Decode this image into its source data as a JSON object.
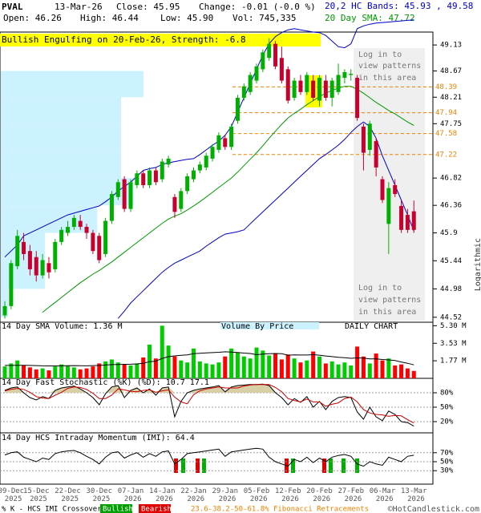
{
  "header": {
    "symbol": "PVAL",
    "date": "13-Mar-26",
    "close": "Close: 45.95",
    "change": "Change: -0.01 (-0.0 %)",
    "open": "Open: 46.26",
    "high": "High: 46.44",
    "low": "Low: 45.90",
    "volume": "Vol: 745,335",
    "bands": "20,2 HC Bands: 45.93 , 49.58",
    "sma": "20 Day SMA: 47.72"
  },
  "login_note": [
    "Log in to",
    "view patterns",
    "in this area"
  ],
  "footer": {
    "crossover_label": "% K - HCS IMI Crossover,",
    "bullish": "Bullish",
    "bearish": "Bearish",
    "fibonacci": "23.6-38.2-50-61.8% Fibonacci Retracements",
    "credit": "©HotCandlestick.com"
  },
  "chart_data": [
    {
      "type": "candlestick",
      "annotation": "Bullish Engulfing on 20-Feb-26, Strength: -6.8",
      "period": "DAILY CHART",
      "axis_label": "Logarithmic",
      "log": true,
      "ylim": [
        44.44,
        49.36
      ],
      "yticks": [
        49.13,
        48.67,
        48.21,
        47.75,
        46.82,
        46.36,
        45.9,
        45.44,
        44.98,
        44.52
      ],
      "up_color": "#00b000",
      "down_color": "#c8002d",
      "open": [
        44.55,
        44.7,
        45.35,
        45.75,
        45.6,
        45.5,
        45.2,
        45.4,
        45.3,
        45.75,
        45.9,
        46.0,
        46.1,
        46.0,
        45.9,
        45.85,
        45.55,
        46.1,
        46.5,
        46.8,
        46.3,
        46.7,
        46.9,
        46.7,
        46.95,
        46.8,
        47.05,
        46.5,
        46.3,
        46.6,
        46.8,
        46.95,
        47.0,
        47.15,
        47.3,
        47.5,
        47.35,
        47.8,
        48.2,
        48.3,
        48.5,
        48.7,
        48.9,
        49.15,
        48.9,
        48.7,
        48.2,
        48.5,
        48.3,
        48.5,
        48.15,
        48.5,
        48.2,
        48.3,
        48.55,
        48.6,
        48.55,
        47.7,
        47.3,
        47.45,
        46.8,
        46.05,
        46.7,
        46.35,
        46.2,
        46.26
      ],
      "high": [
        44.78,
        45.45,
        45.95,
        45.9,
        45.7,
        45.6,
        45.55,
        45.5,
        45.8,
        46.0,
        46.1,
        46.2,
        46.2,
        46.05,
        45.95,
        45.9,
        46.15,
        46.6,
        46.8,
        46.85,
        46.8,
        46.95,
        46.95,
        47.0,
        47.0,
        47.15,
        47.2,
        46.55,
        46.65,
        46.9,
        47.0,
        47.1,
        47.25,
        47.4,
        47.6,
        47.55,
        47.75,
        48.25,
        48.45,
        48.65,
        48.8,
        49.05,
        49.25,
        49.2,
        49.1,
        48.75,
        48.55,
        48.6,
        48.65,
        48.6,
        48.6,
        48.6,
        48.55,
        48.8,
        48.7,
        48.7,
        48.6,
        47.75,
        47.8,
        47.5,
        46.85,
        46.75,
        46.8,
        46.45,
        46.3,
        46.44
      ],
      "low": [
        44.5,
        44.65,
        45.3,
        45.45,
        45.2,
        45.1,
        45.15,
        45.15,
        45.25,
        45.7,
        45.85,
        45.95,
        45.95,
        45.8,
        45.55,
        45.4,
        45.5,
        46.05,
        46.45,
        46.25,
        46.25,
        46.65,
        46.65,
        46.65,
        46.7,
        46.75,
        47.0,
        46.15,
        46.25,
        46.55,
        46.75,
        46.9,
        46.95,
        47.1,
        47.25,
        47.3,
        47.3,
        47.75,
        48.15,
        48.25,
        48.45,
        48.65,
        48.85,
        48.7,
        48.45,
        48.1,
        48.15,
        48.25,
        48.25,
        48.15,
        48.05,
        48.15,
        48.05,
        48.25,
        48.45,
        48.5,
        47.8,
        46.95,
        47.2,
        46.85,
        46.4,
        45.55,
        46.5,
        45.9,
        45.9,
        45.9
      ],
      "close": [
        44.7,
        45.4,
        45.85,
        45.55,
        45.3,
        45.2,
        45.45,
        45.25,
        45.75,
        45.95,
        46.0,
        46.15,
        46.0,
        45.9,
        45.6,
        45.45,
        46.1,
        46.55,
        46.75,
        46.3,
        46.75,
        46.9,
        46.7,
        46.95,
        46.75,
        47.1,
        47.15,
        46.25,
        46.6,
        46.85,
        46.95,
        47.05,
        47.2,
        47.35,
        47.55,
        47.35,
        47.7,
        48.2,
        48.4,
        48.6,
        48.75,
        49.0,
        49.15,
        48.75,
        48.5,
        48.15,
        48.5,
        48.3,
        48.6,
        48.2,
        48.55,
        48.2,
        48.5,
        48.6,
        48.65,
        48.62,
        47.85,
        47.25,
        47.75,
        47.0,
        46.45,
        46.65,
        46.55,
        45.95,
        45.95,
        45.95
      ],
      "overlays": [
        {
          "color": "#0000cc",
          "values": [
            45.5,
            45.6,
            45.7,
            45.85,
            45.9,
            45.95,
            46.0,
            46.05,
            46.1,
            46.15,
            46.2,
            46.23,
            46.26,
            46.29,
            46.32,
            46.35,
            46.42,
            46.5,
            46.6,
            46.68,
            46.75,
            46.85,
            46.95,
            46.98,
            47.0,
            47.05,
            47.08,
            47.1,
            47.12,
            47.14,
            47.15,
            47.22,
            47.3,
            47.38,
            47.45,
            47.55,
            47.7,
            47.95,
            48.2,
            48.45,
            48.7,
            48.95,
            49.15,
            49.28,
            49.35,
            49.4,
            49.42,
            49.4,
            49.38,
            49.36,
            49.35,
            49.3,
            49.2,
            49.1,
            49.08,
            49.15,
            49.42,
            49.47,
            49.5,
            49.52,
            49.53,
            49.54,
            49.55,
            49.56,
            49.57,
            49.58
          ]
        },
        {
          "color": "#0000cc",
          "values": [
            null,
            null,
            null,
            null,
            null,
            null,
            null,
            null,
            null,
            null,
            null,
            null,
            null,
            null,
            null,
            null,
            null,
            null,
            44.5,
            44.62,
            44.75,
            44.85,
            44.95,
            45.05,
            45.15,
            45.25,
            45.33,
            45.4,
            45.45,
            45.5,
            45.55,
            45.6,
            45.68,
            45.75,
            45.82,
            45.88,
            45.9,
            45.92,
            45.95,
            46.05,
            46.15,
            46.25,
            46.35,
            46.45,
            46.55,
            46.65,
            46.75,
            46.85,
            46.95,
            47.05,
            47.15,
            47.22,
            47.3,
            47.38,
            47.48,
            47.6,
            47.7,
            47.78,
            47.7,
            47.5,
            47.2,
            46.95,
            46.7,
            46.45,
            46.2,
            45.93
          ]
        },
        {
          "color": "#009900",
          "values": [
            null,
            null,
            null,
            null,
            null,
            null,
            44.6,
            44.68,
            44.76,
            44.84,
            44.92,
            45.0,
            45.08,
            45.15,
            45.22,
            45.28,
            45.35,
            45.42,
            45.5,
            45.58,
            45.66,
            45.74,
            45.82,
            45.9,
            45.98,
            46.06,
            46.13,
            46.18,
            46.22,
            46.28,
            46.35,
            46.42,
            46.5,
            46.58,
            46.66,
            46.74,
            46.82,
            46.92,
            47.03,
            47.14,
            47.25,
            47.37,
            47.5,
            47.62,
            47.74,
            47.85,
            47.93,
            48.0,
            48.08,
            48.15,
            48.22,
            48.28,
            48.33,
            48.37,
            48.4,
            48.4,
            48.35,
            48.28,
            48.2,
            48.12,
            48.05,
            47.98,
            47.92,
            47.85,
            47.78,
            47.72
          ]
        }
      ],
      "fib_levels": [
        48.39,
        47.94,
        47.58,
        47.22
      ],
      "fib_color": "#f08000",
      "volume_by_price": {
        "title": "Volume By Price",
        "color": "#ccf2ff",
        "bins": [
          44.52,
          44.98,
          45.44,
          45.9,
          46.36,
          46.82,
          47.29,
          47.75,
          48.21,
          48.67
        ],
        "values": [
          100000,
          610000,
          610000,
          1330000,
          1830000,
          1660000,
          1660000,
          1660000,
          1970000
        ]
      }
    },
    {
      "type": "bar",
      "title": "14 Day SMA Volume: 1.36 M",
      "ylim": [
        0,
        5490000
      ],
      "yticks": [
        {
          "value": 5300000,
          "label": "5.30 M"
        },
        {
          "value": 3530000,
          "label": "3.53 M"
        },
        {
          "value": 1770000,
          "label": "1.77 M"
        }
      ],
      "up_color": "#00cc00",
      "down_color": "#ff0000",
      "line_color": "#000000",
      "values": [
        1200000,
        1500000,
        1800000,
        1300000,
        1100000,
        900000,
        1000000,
        800000,
        1200000,
        1400000,
        1300000,
        1100000,
        900000,
        1000000,
        1200000,
        1500000,
        1700000,
        1900000,
        1600000,
        1400000,
        1300000,
        1500000,
        2100000,
        3400000,
        2000000,
        5300000,
        3300000,
        2200000,
        1800000,
        1600000,
        3000000,
        1700000,
        1500000,
        1400000,
        1600000,
        2200000,
        3000000,
        2600000,
        2200000,
        2000000,
        3100000,
        2800000,
        2300000,
        2500000,
        1900000,
        2400000,
        2000000,
        1600000,
        1800000,
        2700000,
        2200000,
        1500000,
        1700000,
        1400000,
        1600000,
        1300000,
        3200000,
        2200000,
        1500000,
        2500000,
        1800000,
        2000000,
        1300000,
        1400000,
        1000000,
        745335
      ],
      "sma": [
        1300000,
        1300000,
        1310000,
        1320000,
        1300000,
        1280000,
        1260000,
        1250000,
        1250000,
        1260000,
        1270000,
        1280000,
        1270000,
        1260000,
        1280000,
        1300000,
        1340000,
        1380000,
        1400000,
        1410000,
        1420000,
        1450000,
        1510000,
        1680000,
        1730000,
        2010000,
        2180000,
        2260000,
        2320000,
        2360000,
        2480000,
        2530000,
        2560000,
        2590000,
        2620000,
        2670000,
        2640000,
        2600000,
        2540000,
        2500000,
        2380000,
        2440000,
        2480000,
        2500000,
        2480000,
        2330000,
        2360000,
        2350000,
        2350000,
        2380000,
        2330000,
        2250000,
        2190000,
        2120000,
        2080000,
        2020000,
        2060000,
        2040000,
        1960000,
        1960000,
        1900000,
        1860000,
        1790000,
        1650000,
        1520000,
        1360000
      ]
    },
    {
      "type": "line",
      "title": "14 Day Fast Stochastic (%K) (%D): 10.7  17.1",
      "ylim": [
        0,
        100
      ],
      "yticks": [
        {
          "value": 80,
          "label": "80%"
        },
        {
          "value": 50,
          "label": "50%"
        },
        {
          "value": 20,
          "label": "20%"
        }
      ],
      "grid": true,
      "fill_color": "#d9cfa6",
      "series": [
        {
          "color": "#000000",
          "values": [
            85,
            90,
            92,
            80,
            70,
            65,
            72,
            68,
            85,
            90,
            92,
            94,
            88,
            80,
            70,
            55,
            78,
            92,
            95,
            70,
            85,
            90,
            80,
            88,
            75,
            90,
            92,
            30,
            62,
            80,
            85,
            88,
            90,
            92,
            95,
            82,
            92,
            95,
            96,
            97,
            97,
            98,
            95,
            80,
            70,
            55,
            68,
            60,
            72,
            50,
            62,
            45,
            62,
            70,
            72,
            70,
            40,
            25,
            50,
            30,
            22,
            42,
            35,
            20,
            18,
            10.7
          ]
        },
        {
          "color": "#cc0000",
          "values": [
            84,
            87,
            89,
            87,
            81,
            72,
            69,
            68,
            75,
            81,
            89,
            92,
            91,
            87,
            79,
            68,
            68,
            75,
            88,
            86,
            83,
            82,
            85,
            86,
            81,
            84,
            86,
            71,
            61,
            57,
            76,
            84,
            88,
            90,
            92,
            90,
            90,
            90,
            94,
            96,
            97,
            97,
            97,
            91,
            82,
            68,
            64,
            61,
            67,
            61,
            61,
            52,
            56,
            59,
            68,
            71,
            61,
            45,
            38,
            35,
            34,
            31,
            33,
            32,
            24,
            17.1
          ]
        }
      ]
    },
    {
      "type": "line",
      "title": "14 Day HCS Intraday Momentum (IMI): 64.4",
      "ylim": [
        0,
        100
      ],
      "yticks": [
        {
          "value": 70,
          "label": "70%"
        },
        {
          "value": 50,
          "label": "50%"
        },
        {
          "value": 30,
          "label": "30%"
        }
      ],
      "grid": true,
      "categories": [
        null,
        "09-Dec 2025",
        null,
        null,
        null,
        "15-Dec 2025",
        null,
        null,
        null,
        null,
        "22-Dec 2025",
        null,
        null,
        null,
        null,
        "30-Dec 2025",
        null,
        null,
        null,
        null,
        "07-Jan 2026",
        null,
        null,
        null,
        null,
        "14-Jan 2026",
        null,
        null,
        null,
        null,
        "22-Jan 2026",
        null,
        null,
        null,
        null,
        "29-Jan 2026",
        null,
        null,
        null,
        null,
        "05-Feb 2026",
        null,
        null,
        null,
        null,
        "12-Feb 2026",
        null,
        null,
        null,
        null,
        "20-Feb 2026",
        null,
        null,
        null,
        null,
        "27-Feb 2026",
        null,
        null,
        null,
        null,
        "06-Mar 2026",
        null,
        null,
        null,
        null,
        "13-Mar 2026"
      ],
      "series": [
        {
          "color": "#000000",
          "values": [
            65,
            70,
            72,
            60,
            55,
            50,
            58,
            55,
            68,
            72,
            74,
            75,
            70,
            62,
            55,
            45,
            60,
            70,
            72,
            58,
            65,
            70,
            60,
            68,
            62,
            72,
            74,
            45,
            55,
            68,
            70,
            72,
            74,
            76,
            78,
            62,
            72,
            74,
            76,
            78,
            80,
            78,
            60,
            50,
            45,
            40,
            55,
            50,
            60,
            48,
            58,
            50,
            60,
            64,
            66,
            62,
            45,
            40,
            50,
            45,
            42,
            60,
            55,
            50,
            62,
            64.4
          ]
        }
      ]
    }
  ]
}
